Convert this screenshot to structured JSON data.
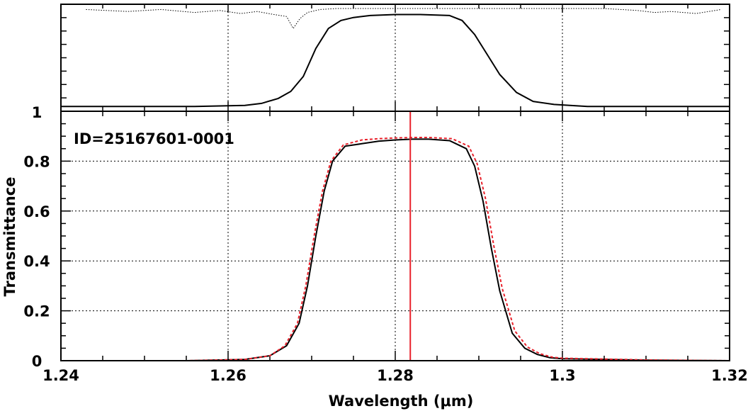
{
  "chart_data": [
    {
      "panel": "top",
      "type": "line",
      "xlim": [
        1.24,
        1.32
      ],
      "ylabels": [
        "1"
      ],
      "grid": true,
      "series": [
        {
          "role": "atmosphere",
          "style": "dotted",
          "color": "#000000",
          "x": [
            1.243,
            1.248,
            1.252,
            1.256,
            1.259,
            1.2615,
            1.2635,
            1.2655,
            1.267,
            1.2678,
            1.2686,
            1.2695,
            1.271,
            1.273,
            1.276,
            1.28,
            1.285,
            1.29,
            1.295,
            1.3,
            1.305,
            1.309,
            1.311,
            1.313,
            1.316,
            1.319
          ],
          "y": [
            0.99,
            0.97,
            0.99,
            0.96,
            0.98,
            0.95,
            0.97,
            0.94,
            0.92,
            0.8,
            0.9,
            0.96,
            0.99,
            1.0,
            1.0,
            1.0,
            1.0,
            1.0,
            1.0,
            1.0,
            1.0,
            0.98,
            0.96,
            0.97,
            0.95,
            0.99
          ]
        },
        {
          "role": "filter-profile",
          "style": "solid",
          "color": "#000000",
          "x": [
            1.24,
            1.256,
            1.262,
            1.264,
            1.266,
            1.2675,
            1.269,
            1.2705,
            1.272,
            1.2735,
            1.275,
            1.277,
            1.28,
            1.283,
            1.2865,
            1.288,
            1.2895,
            1.291,
            1.2925,
            1.2945,
            1.2965,
            1.299,
            1.303,
            1.31,
            1.32
          ],
          "y": [
            0.02,
            0.02,
            0.03,
            0.05,
            0.1,
            0.17,
            0.32,
            0.6,
            0.8,
            0.88,
            0.91,
            0.93,
            0.94,
            0.94,
            0.93,
            0.88,
            0.74,
            0.54,
            0.34,
            0.16,
            0.07,
            0.04,
            0.02,
            0.02,
            0.02
          ]
        }
      ]
    },
    {
      "panel": "main",
      "type": "line",
      "xlim": [
        1.24,
        1.32
      ],
      "ylim": [
        0,
        1.0
      ],
      "xlabel": "Wavelength (μm)",
      "ylabel": "Transmittance",
      "xticks": [
        1.24,
        1.26,
        1.28,
        1.3,
        1.32
      ],
      "xtick_labels": [
        "1.24",
        "1.26",
        "1.28",
        "1.3",
        "1.32"
      ],
      "yticks": [
        0,
        0.2,
        0.4,
        0.6,
        0.8,
        1.0
      ],
      "ytick_labels": [
        "0",
        "0.2",
        "0.4",
        "0.6",
        "0.8",
        "1"
      ],
      "grid": true,
      "annotation": "ID=25167601-0001",
      "vline": {
        "x": 1.2818,
        "color": "#e8202a"
      },
      "series": [
        {
          "role": "measured",
          "style": "solid",
          "color": "#000000",
          "x": [
            1.24,
            1.255,
            1.262,
            1.265,
            1.267,
            1.2685,
            1.2695,
            1.2705,
            1.2715,
            1.2725,
            1.274,
            1.276,
            1.278,
            1.28,
            1.282,
            1.284,
            1.2865,
            1.2885,
            1.2895,
            1.2905,
            1.2915,
            1.2925,
            1.294,
            1.2955,
            1.297,
            1.2985,
            1.3,
            1.31,
            1.32
          ],
          "y": [
            0.0,
            0.0,
            0.005,
            0.02,
            0.06,
            0.15,
            0.3,
            0.5,
            0.68,
            0.8,
            0.86,
            0.87,
            0.88,
            0.885,
            0.888,
            0.888,
            0.882,
            0.85,
            0.78,
            0.64,
            0.45,
            0.28,
            0.11,
            0.05,
            0.025,
            0.012,
            0.008,
            0.002,
            0.0
          ]
        },
        {
          "role": "model",
          "style": "dotted",
          "color": "#e8202a",
          "x": [
            1.24,
            1.255,
            1.262,
            1.265,
            1.2668,
            1.2683,
            1.2693,
            1.2703,
            1.2713,
            1.2723,
            1.2738,
            1.276,
            1.278,
            1.28,
            1.282,
            1.284,
            1.2868,
            1.2888,
            1.2898,
            1.2908,
            1.2918,
            1.2928,
            1.2943,
            1.2958,
            1.2973,
            1.2988,
            1.3,
            1.31,
            1.32
          ],
          "y": [
            0.0,
            0.0,
            0.005,
            0.02,
            0.06,
            0.15,
            0.3,
            0.5,
            0.68,
            0.8,
            0.865,
            0.885,
            0.89,
            0.893,
            0.895,
            0.895,
            0.89,
            0.86,
            0.79,
            0.65,
            0.46,
            0.29,
            0.12,
            0.055,
            0.028,
            0.014,
            0.01,
            0.003,
            0.0
          ]
        }
      ]
    }
  ]
}
